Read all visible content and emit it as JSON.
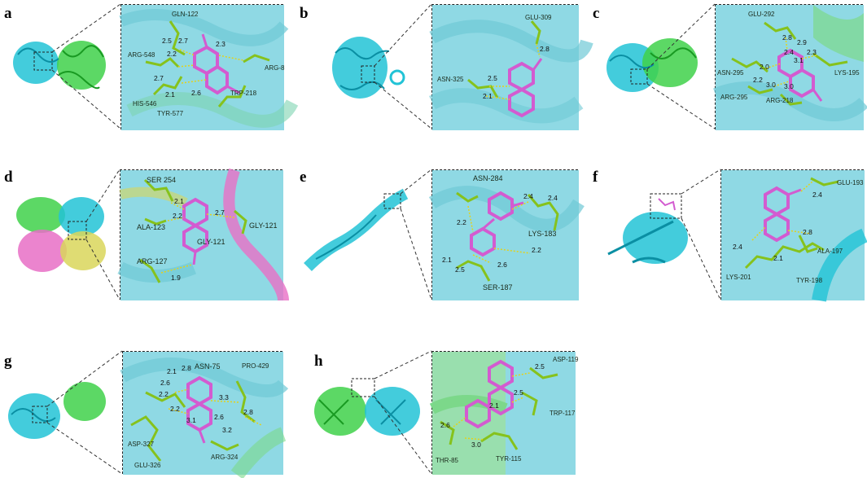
{
  "figure": {
    "panels": [
      {
        "letter": "a",
        "residues": [
          "GLN-122",
          "ARG-548",
          "ARG-8",
          "HIS-546",
          "TRP-218",
          "TYR-577"
        ],
        "distances": [
          "2.5",
          "2.7",
          "2.2",
          "2.7",
          "2.1",
          "2.6",
          "2.3"
        ]
      },
      {
        "letter": "b",
        "residues": [
          "GLU-309",
          "ASN-325"
        ],
        "distances": [
          "2.8",
          "2.5",
          "2.1"
        ]
      },
      {
        "letter": "c",
        "residues": [
          "GLU-292",
          "ASN-295",
          "LYS-195",
          "ARG-295",
          "ARG-218"
        ],
        "distances": [
          "2.8",
          "2.9",
          "2.3",
          "3.1",
          "2.4",
          "2.0",
          "2.2",
          "3.0",
          "3.0"
        ]
      },
      {
        "letter": "d",
        "residues": [
          "SER 254",
          "ALA-123",
          "GLY-121",
          "GLY-121",
          "ARG-127"
        ],
        "distances": [
          "2.1",
          "2.2",
          "2.7",
          "1.9"
        ]
      },
      {
        "letter": "e",
        "residues": [
          "ASN-284",
          "LYS-183",
          "SER-187"
        ],
        "distances": [
          "2.4",
          "2.4",
          "2.2",
          "2.2",
          "2.1",
          "2.6",
          "2.5"
        ]
      },
      {
        "letter": "f",
        "residues": [
          "GLU-193",
          "ALA-197",
          "LYS-201",
          "TYR-198"
        ],
        "distances": [
          "2.4",
          "2.4",
          "2.8",
          "2.1"
        ]
      },
      {
        "letter": "g",
        "residues": [
          "ASN-75",
          "PRO-429",
          "ASP-327",
          "GLU-326",
          "ARG-324"
        ],
        "distances": [
          "2.1",
          "2.8",
          "2.6",
          "2.2",
          "2.2",
          "3.3",
          "2.8",
          "3.1",
          "2.6",
          "3.2"
        ]
      },
      {
        "letter": "h",
        "residues": [
          "ASP-119",
          "TRP-117",
          "THR-85",
          "TYR-115"
        ],
        "distances": [
          "2.5",
          "2.5",
          "2.1",
          "2.6",
          "3.0"
        ]
      }
    ]
  },
  "colors": {
    "protein_cyan": "#22c3d6",
    "protein_green": "#3fd14a",
    "protein_pink": "#e86fc5",
    "protein_yellow": "#d9d65a",
    "ligand_magenta": "#d35bd0",
    "residue_green": "#86c21c",
    "hbond_yellow": "#e4d21a",
    "background_cyan": "#8fd9e4",
    "dash_border": "#222222"
  }
}
